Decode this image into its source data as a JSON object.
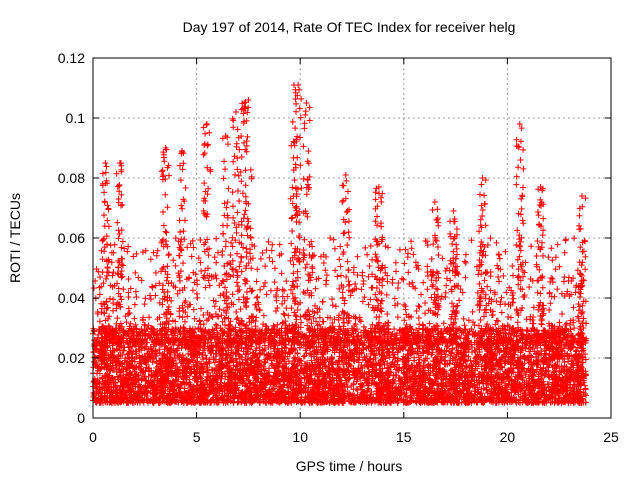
{
  "chart_data": {
    "type": "scatter",
    "title": "Day 197 of 2014, Rate Of TEC Index for receiver helg",
    "xlabel": "GPS time / hours",
    "ylabel": "ROTI / TECUs",
    "xlim": [
      0,
      25
    ],
    "ylim": [
      0,
      0.12
    ],
    "xticks": [
      0,
      5,
      10,
      15,
      20,
      25
    ],
    "xtick_labels": [
      "0",
      "5",
      "10",
      "15",
      "20",
      "25"
    ],
    "yticks": [
      0,
      0.02,
      0.04,
      0.06,
      0.08,
      0.1,
      0.12
    ],
    "ytick_labels": [
      "0",
      "0.02",
      "0.04",
      "0.06",
      "0.08",
      "0.1",
      "0.12"
    ],
    "grid": true,
    "marker": "+",
    "color": "#ff0000",
    "data_range_hours": [
      0,
      23.8
    ],
    "baseline_band": [
      0.005,
      0.03
    ],
    "notable_peaks": [
      {
        "x": 0.6,
        "y": 0.085
      },
      {
        "x": 1.3,
        "y": 0.085
      },
      {
        "x": 3.5,
        "y": 0.09
      },
      {
        "x": 4.3,
        "y": 0.089
      },
      {
        "x": 5.5,
        "y": 0.098
      },
      {
        "x": 6.4,
        "y": 0.094
      },
      {
        "x": 6.9,
        "y": 0.102
      },
      {
        "x": 7.3,
        "y": 0.105
      },
      {
        "x": 7.5,
        "y": 0.106
      },
      {
        "x": 9.7,
        "y": 0.111
      },
      {
        "x": 9.9,
        "y": 0.111
      },
      {
        "x": 10.3,
        "y": 0.105
      },
      {
        "x": 12.2,
        "y": 0.081
      },
      {
        "x": 13.8,
        "y": 0.077
      },
      {
        "x": 16.5,
        "y": 0.072
      },
      {
        "x": 17.4,
        "y": 0.069
      },
      {
        "x": 18.8,
        "y": 0.08
      },
      {
        "x": 20.6,
        "y": 0.098
      },
      {
        "x": 21.6,
        "y": 0.077
      },
      {
        "x": 23.6,
        "y": 0.074
      }
    ]
  }
}
